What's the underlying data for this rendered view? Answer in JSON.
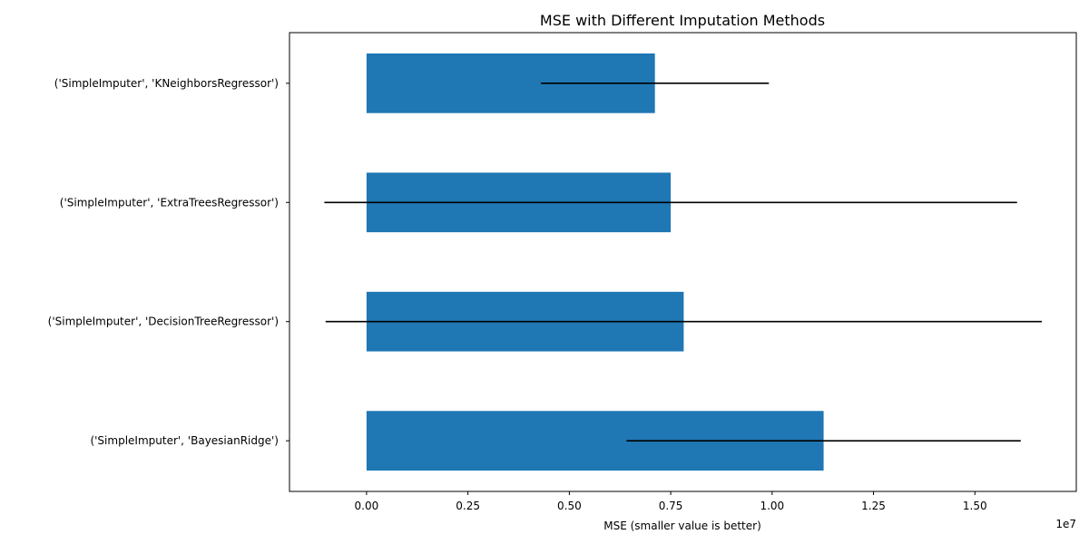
{
  "chart_data": {
    "type": "bar",
    "orientation": "horizontal",
    "title": "MSE with Different Imputation Methods",
    "xlabel": "MSE (smaller value is better)",
    "ylabel": "",
    "x_offset_label": "1e7",
    "scale": 10000000,
    "xlim": [
      -0.19,
      1.75
    ],
    "xticks": [
      0.0,
      0.25,
      0.5,
      0.75,
      1.0,
      1.25,
      1.5
    ],
    "xtick_labels": [
      "0.00",
      "0.25",
      "0.50",
      "0.75",
      "1.00",
      "1.25",
      "1.50"
    ],
    "categories": [
      "('SimpleImputer', 'BayesianRidge')",
      "('SimpleImputer', 'DecisionTreeRegressor')",
      "('SimpleImputer', 'ExtraTreesRegressor')",
      "('SimpleImputer', 'KNeighborsRegressor')"
    ],
    "values": [
      1.127,
      0.782,
      0.75,
      0.711
    ],
    "errors": [
      0.486,
      0.883,
      0.854,
      0.281
    ],
    "bar_color": "#1f77b4",
    "error_color": "#000000"
  }
}
